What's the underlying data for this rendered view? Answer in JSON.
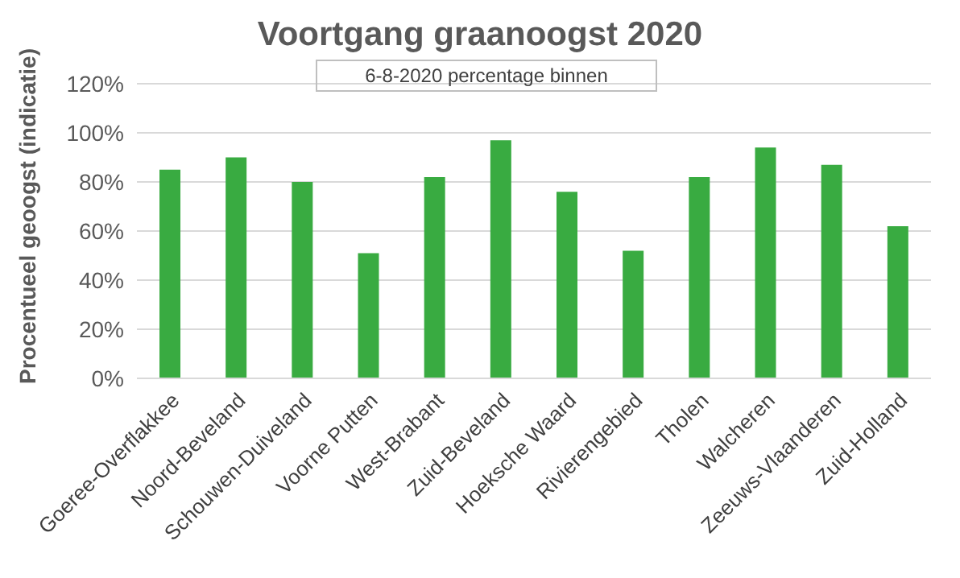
{
  "chart_data": {
    "type": "bar",
    "title": "Voortgang graanoogst 2020",
    "subtitle": "6-8-2020 percentage binnen",
    "ylabel": "Procentueel geoogst (indicatie)",
    "categories": [
      "Goeree-Overflakkee",
      "Noord-Beveland",
      "Schouwen-Duiveland",
      "Voorne Putten",
      "West-Brabant",
      "Zuid-Beveland",
      "Hoeksche Waard",
      "Rivierengebied",
      "Tholen",
      "Walcheren",
      "Zeeuws-Vlaanderen",
      "Zuid-Holland"
    ],
    "values": [
      85,
      90,
      80,
      51,
      82,
      97,
      76,
      52,
      82,
      94,
      87,
      62
    ],
    "color": "#39ab41",
    "ylim": [
      0,
      120
    ],
    "yticks": [
      {
        "value": 0,
        "label": "0%"
      },
      {
        "value": 20,
        "label": "20%"
      },
      {
        "value": 40,
        "label": "40%"
      },
      {
        "value": 60,
        "label": "60%"
      },
      {
        "value": 80,
        "label": "80%"
      },
      {
        "value": 100,
        "label": "100%"
      },
      {
        "value": 120,
        "label": "120%"
      }
    ],
    "grid": "y",
    "legend": false
  }
}
